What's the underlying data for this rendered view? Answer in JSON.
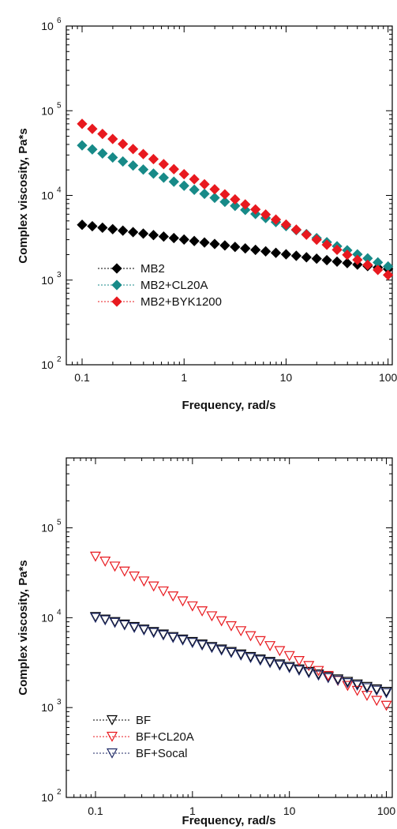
{
  "chart_data": [
    {
      "type": "scatter",
      "xlabel": "Frequency, rad/s",
      "ylabel": "Complex viscosity, Pa*s",
      "x_scale": "log",
      "y_scale": "log",
      "xlim": [
        0.07,
        110
      ],
      "ylim": [
        100,
        1000000
      ],
      "x_ticks": [
        {
          "value": 0.1,
          "label": "0.1"
        },
        {
          "value": 1,
          "label": "1"
        },
        {
          "value": 10,
          "label": "10"
        },
        {
          "value": 100,
          "label": "100"
        }
      ],
      "y_ticks": [
        {
          "value": 100,
          "base": "10",
          "exp": "2"
        },
        {
          "value": 1000,
          "base": "10",
          "exp": "3"
        },
        {
          "value": 10000,
          "base": "10",
          "exp": "4"
        },
        {
          "value": 100000,
          "base": "10",
          "exp": "5"
        },
        {
          "value": 1000000,
          "base": "10",
          "exp": "6"
        }
      ],
      "legend_position": "bottom-left",
      "series": [
        {
          "name": "MB2",
          "marker": "diamond",
          "color": "#000000",
          "x_start": 0.1,
          "x_end": 100,
          "y_start": 4500,
          "y_end": 1350,
          "points": 31
        },
        {
          "name": "MB2+CL20A",
          "marker": "diamond",
          "color": "#178a88",
          "x_start": 0.1,
          "x_end": 100,
          "y_start": 39000,
          "y_end": 1450,
          "points": 31
        },
        {
          "name": "MB2+BYK1200",
          "marker": "diamond",
          "color": "#e8191f",
          "x_start": 0.1,
          "x_end": 100,
          "y_start": 70000,
          "y_end": 1150,
          "points": 31
        }
      ]
    },
    {
      "type": "scatter",
      "xlabel": "Frequency, rad/s",
      "ylabel": "Complex viscosity, Pa*s",
      "x_scale": "log",
      "y_scale": "log",
      "xlim": [
        0.05,
        115
      ],
      "ylim": [
        100,
        600000
      ],
      "x_ticks": [
        {
          "value": 0.1,
          "label": "0.1"
        },
        {
          "value": 1,
          "label": "1"
        },
        {
          "value": 10,
          "label": "10"
        },
        {
          "value": 100,
          "label": "100"
        }
      ],
      "y_ticks": [
        {
          "value": 100,
          "base": "10",
          "exp": "2"
        },
        {
          "value": 1000,
          "base": "10",
          "exp": "3"
        },
        {
          "value": 10000,
          "base": "10",
          "exp": "4"
        },
        {
          "value": 100000,
          "base": "10",
          "exp": "5"
        }
      ],
      "legend_position": "bottom-left",
      "series": [
        {
          "name": "BF",
          "marker": "triangle-down-open",
          "color": "#000000",
          "x_start": 0.1,
          "x_end": 100,
          "y_start": 10200,
          "y_end": 1500,
          "points": 31
        },
        {
          "name": "BF+CL20A",
          "marker": "triangle-down-open",
          "color": "#e8191f",
          "x_start": 0.1,
          "x_end": 100,
          "y_start": 48000,
          "y_end": 1050,
          "points": 31
        },
        {
          "name": "BF+Socal",
          "marker": "triangle-down-open",
          "color": "#1f2a66",
          "x_start": 0.1,
          "x_end": 100,
          "y_start": 10000,
          "y_end": 1450,
          "points": 31
        }
      ]
    }
  ]
}
